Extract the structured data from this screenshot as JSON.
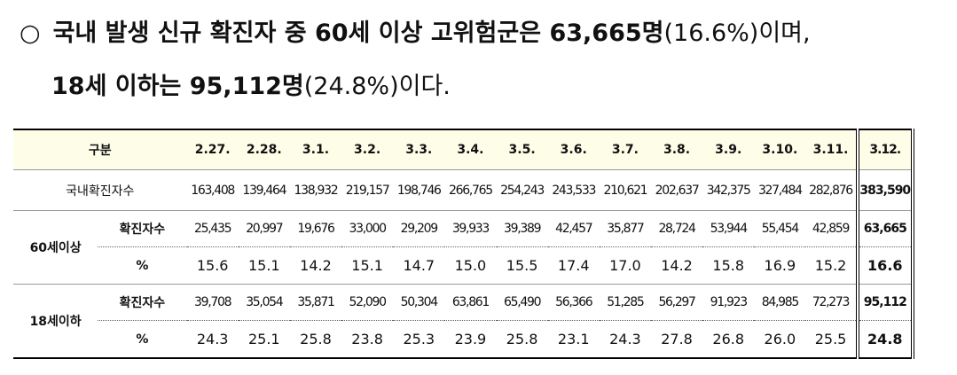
{
  "paragraph": {
    "lines": [
      [
        {
          "text": "○",
          "bold": false
        },
        {
          "text": "국내 발생 신규 확진자 중 60세 이상 고위험군은 63,665명",
          "bold": true
        },
        {
          "text": "(16.6%)이며,",
          "bold": false
        }
      ],
      [
        {
          "text": "18세 이하는 95,112명",
          "bold": true
        },
        {
          "text": "(24.8%)이다.",
          "bold": false
        }
      ]
    ]
  },
  "table": {
    "header": [
      "구분",
      "2.27.",
      "2.28.",
      "3.1.",
      "3.2.",
      "3.3.",
      "3.4.",
      "3.5.",
      "3.6.",
      "3.7.",
      "3.8.",
      "3.9.",
      "3.10.",
      "3.11.",
      "3.12."
    ],
    "total": {
      "label": "국내확진자수",
      "values": [
        "163,408",
        "139,464",
        "138,932",
        "219,157",
        "198,746",
        "266,765",
        "254,243",
        "243,533",
        "210,621",
        "202,637",
        "342,375",
        "327,484",
        "282,876",
        "383,590"
      ]
    },
    "groups": [
      {
        "label": "60세이상",
        "rows": [
          {
            "label": "확진자수",
            "values": [
              "25,435",
              "20,997",
              "19,676",
              "33,000",
              "29,209",
              "39,933",
              "39,389",
              "42,457",
              "35,877",
              "28,724",
              "53,944",
              "55,454",
              "42,859",
              "63,665"
            ]
          },
          {
            "label": "%",
            "values": [
              "15.6",
              "15.1",
              "14.2",
              "15.1",
              "14.7",
              "15.0",
              "15.5",
              "17.4",
              "17.0",
              "14.2",
              "15.8",
              "16.9",
              "15.2",
              "16.6"
            ]
          }
        ]
      },
      {
        "label": "18세이하",
        "rows": [
          {
            "label": "확진자수",
            "values": [
              "39,708",
              "35,054",
              "35,871",
              "52,090",
              "50,304",
              "63,861",
              "65,490",
              "56,366",
              "51,285",
              "56,297",
              "91,923",
              "84,985",
              "72,273",
              "95,112"
            ]
          },
          {
            "label": "%",
            "values": [
              "24.3",
              "25.1",
              "25.8",
              "23.8",
              "25.3",
              "23.9",
              "25.8",
              "23.1",
              "24.3",
              "27.8",
              "26.8",
              "26.0",
              "25.5",
              "24.8"
            ]
          }
        ]
      }
    ]
  }
}
